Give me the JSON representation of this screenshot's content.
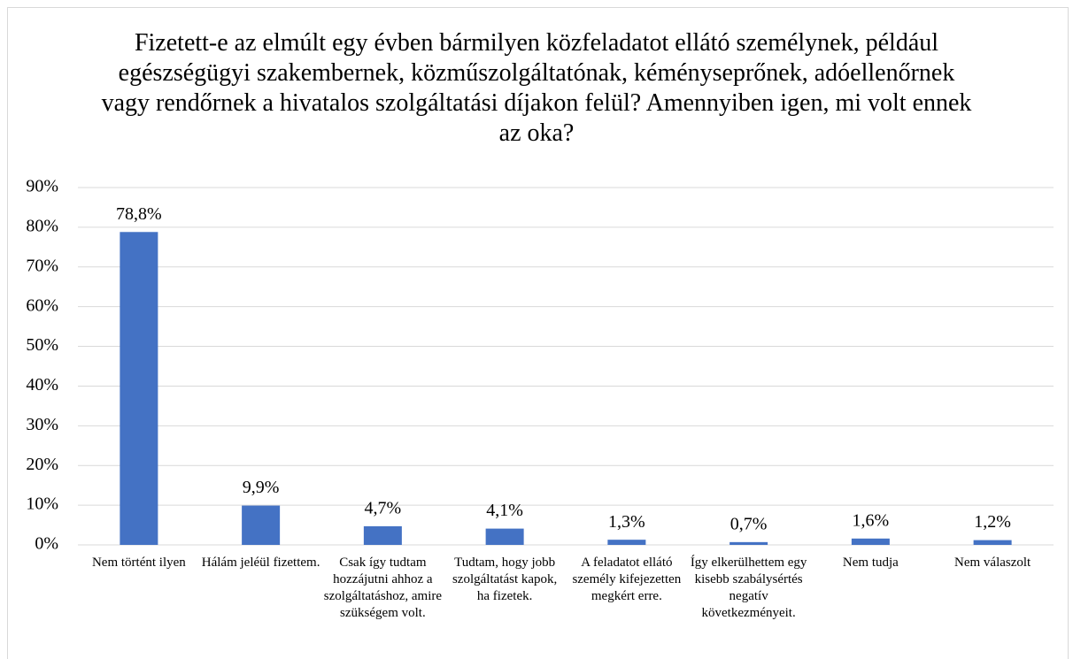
{
  "chart_data": {
    "type": "bar",
    "title": "Fizetett-e az elmúlt egy évben bármilyen közfeladatot ellátó személynek, például egészségügyi szakembernek, közműszolgáltatónak, kéményseprőnek, adóellenőrnek vagy rendőrnek a hivatalos szolgáltatási díjakon felül? Amennyiben igen, mi volt ennek az oka?",
    "categories": [
      "Nem történt ilyen",
      "Hálám jeléül fizettem.",
      "Csak így tudtam hozzájutni ahhoz a szolgáltatáshoz, amire szükségem volt.",
      "Tudtam, hogy jobb szolgáltatást kapok, ha fizetek.",
      "A feladatot ellátó személy kifejezetten megkért erre.",
      "Így elkerülhettem egy kisebb szabálysértés negatív következményeit.",
      "Nem tudja",
      "Nem válaszolt"
    ],
    "values": [
      78.8,
      9.9,
      4.7,
      4.1,
      1.3,
      0.7,
      1.6,
      1.2
    ],
    "value_labels": [
      "78,8%",
      "9,9%",
      "4,7%",
      "4,1%",
      "1,3%",
      "0,7%",
      "1,6%",
      "1,2%"
    ],
    "color": "#4472c4",
    "ylim": [
      0,
      90
    ],
    "yticks": [
      {
        "value": 0,
        "label": "0%"
      },
      {
        "value": 10,
        "label": "10%"
      },
      {
        "value": 20,
        "label": "20%"
      },
      {
        "value": 30,
        "label": "30%"
      },
      {
        "value": 40,
        "label": "40%"
      },
      {
        "value": 50,
        "label": "50%"
      },
      {
        "value": 60,
        "label": "60%"
      },
      {
        "value": 70,
        "label": "70%"
      },
      {
        "value": 80,
        "label": "80%"
      },
      {
        "value": 90,
        "label": "90%"
      }
    ],
    "grid": true
  }
}
